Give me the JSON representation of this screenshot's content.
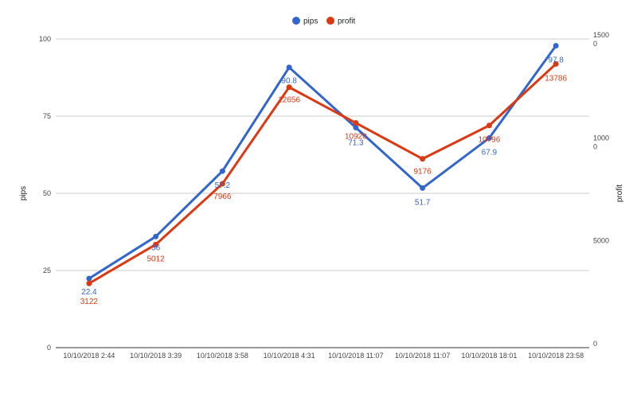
{
  "chart_data": {
    "type": "line",
    "categories": [
      "10/10/2018 2:44",
      "10/10/2018 3:39",
      "10/10/2018 3:58",
      "10/10/2018 4:31",
      "10/10/2018 11:07",
      "10/10/2018 11:07",
      "10/10/2018 18:01",
      "10/10/2018 23:58"
    ],
    "series": [
      {
        "name": "pips",
        "axis": "left",
        "color": "#3366cc",
        "values": [
          22.4,
          36,
          57.2,
          90.8,
          71.3,
          51.7,
          67.9,
          97.8
        ],
        "labels": [
          "22.4",
          "36",
          "57.2",
          "90.8",
          "71.3",
          "51.7",
          "67.9",
          "97.8"
        ]
      },
      {
        "name": "profit",
        "axis": "right",
        "color": "#dc3912",
        "values": [
          3122,
          5012,
          7966,
          12656,
          10920,
          9176,
          10796,
          13786
        ],
        "labels": [
          "3122",
          "5012",
          "7966",
          "12656",
          "10920",
          "9176",
          "10796",
          "13786"
        ]
      }
    ],
    "left_axis": {
      "title": "pips",
      "range": [
        0,
        100
      ],
      "ticks": [
        0,
        25,
        50,
        75,
        100
      ],
      "tick_labels": [
        "0",
        "25",
        "50",
        "75",
        "100"
      ]
    },
    "right_axis": {
      "title": "profit",
      "range": [
        0,
        15000
      ],
      "ticks": [
        0,
        5000,
        10000,
        15000
      ],
      "tick_labels": [
        "0",
        "5000",
        "1000\n0",
        "1500\n0"
      ]
    },
    "legend": {
      "position": "top"
    },
    "grid": true
  }
}
